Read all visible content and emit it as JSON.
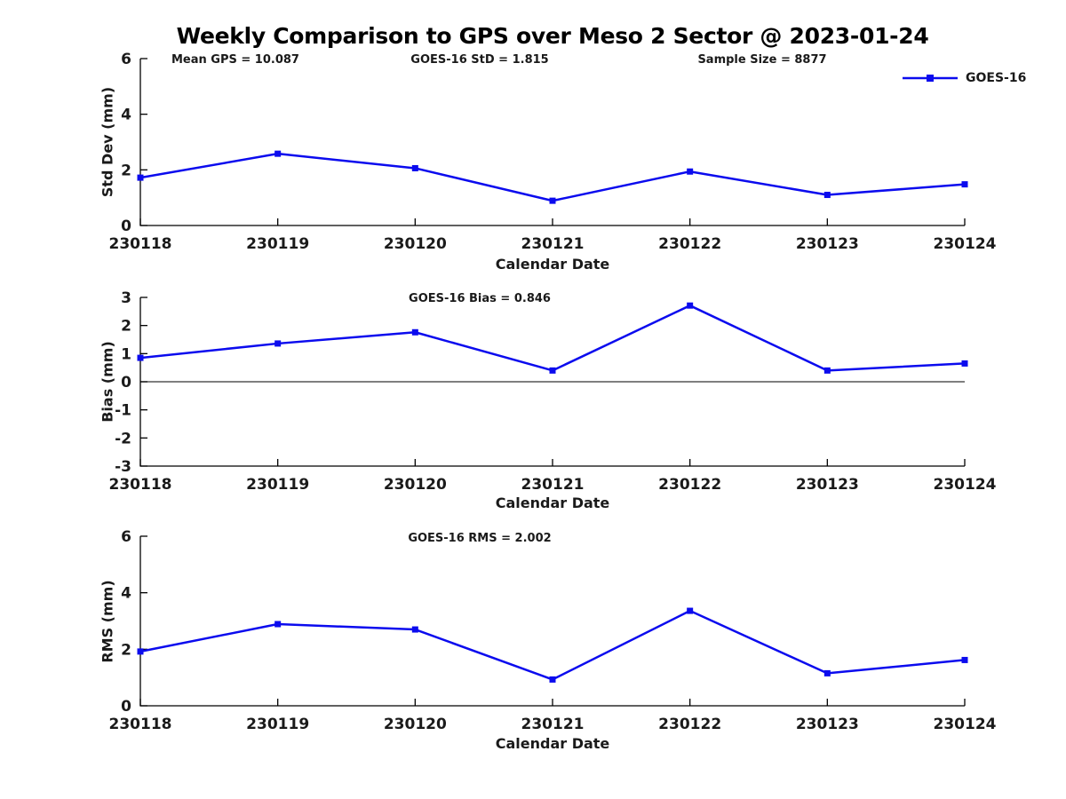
{
  "title": "Weekly Comparison to GPS over Meso 2 Sector @ 2023-01-24",
  "legend": {
    "label": "GOES-16",
    "color": "#0b0bee"
  },
  "chart_data": [
    {
      "type": "line",
      "panel": "std-dev",
      "categories": [
        "230118",
        "230119",
        "230120",
        "230121",
        "230122",
        "230123",
        "230124"
      ],
      "series": [
        {
          "name": "GOES-16",
          "values": [
            1.72,
            2.58,
            2.06,
            0.89,
            1.94,
            1.1,
            1.48
          ]
        }
      ],
      "xlabel": "Calendar Date",
      "ylabel": "Std Dev (mm)",
      "ylim": [
        0,
        6
      ],
      "yticks": [
        0,
        2,
        4,
        6
      ],
      "grid": false,
      "line_color": "#0b0bee",
      "marker": "square",
      "annotations": [
        "Mean GPS = 10.087",
        "GOES-16 StD = 1.815",
        "Sample Size = 8877"
      ],
      "legend_position": "top-right-outside"
    },
    {
      "type": "line",
      "panel": "bias",
      "categories": [
        "230118",
        "230119",
        "230120",
        "230121",
        "230122",
        "230123",
        "230124"
      ],
      "series": [
        {
          "name": "GOES-16",
          "values": [
            0.85,
            1.36,
            1.76,
            0.4,
            2.71,
            0.4,
            0.65
          ]
        }
      ],
      "xlabel": "Calendar Date",
      "ylabel": "Bias (mm)",
      "ylim": [
        -3,
        3
      ],
      "yticks": [
        3,
        2,
        1,
        0,
        -1,
        -2,
        -3
      ],
      "grid": false,
      "zero_line": true,
      "line_color": "#0b0bee",
      "marker": "square",
      "annotation": "GOES-16 Bias  = 0.846"
    },
    {
      "type": "line",
      "panel": "rms",
      "categories": [
        "230118",
        "230119",
        "230120",
        "230121",
        "230122",
        "230123",
        "230124"
      ],
      "series": [
        {
          "name": "GOES-16",
          "values": [
            1.92,
            2.89,
            2.7,
            0.93,
            3.36,
            1.15,
            1.62
          ]
        }
      ],
      "xlabel": "Calendar Date",
      "ylabel": "RMS (mm)",
      "ylim": [
        0,
        6
      ],
      "yticks": [
        0,
        2,
        4,
        6
      ],
      "grid": false,
      "line_color": "#0b0bee",
      "marker": "square",
      "annotation": "GOES-16 RMS = 2.002"
    }
  ]
}
